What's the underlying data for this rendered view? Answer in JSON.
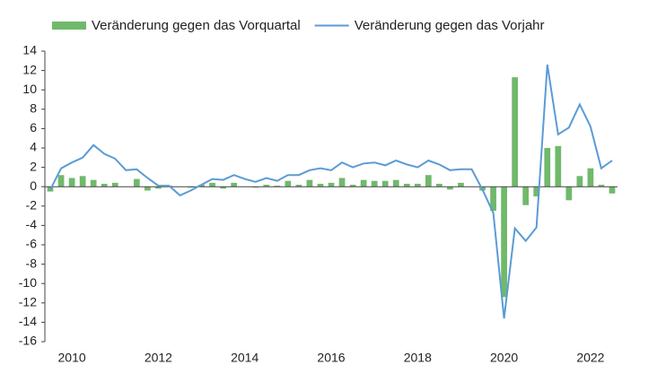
{
  "chart_data": {
    "type": "bar-line",
    "categories": [
      null,
      null,
      "2010",
      null,
      null,
      null,
      null,
      null,
      null,
      null,
      "2012",
      null,
      null,
      null,
      null,
      null,
      null,
      null,
      "2014",
      null,
      null,
      null,
      null,
      null,
      null,
      null,
      "2016",
      null,
      null,
      null,
      null,
      null,
      null,
      null,
      "2018",
      null,
      null,
      null,
      null,
      null,
      null,
      null,
      "2020",
      null,
      null,
      null,
      null,
      null,
      null,
      null,
      "2022",
      null,
      null
    ],
    "series": [
      {
        "name": "Veränderung gegen das Vorquartal",
        "color": "#70b96b",
        "kind": "bar",
        "values": [
          -0.5,
          1.2,
          0.9,
          1.1,
          0.7,
          0.3,
          0.4,
          0.0,
          0.8,
          -0.4,
          -0.2,
          0.1,
          0.0,
          -0.1,
          0.2,
          0.4,
          -0.2,
          0.4,
          0.0,
          -0.1,
          0.2,
          0.1,
          0.6,
          0.2,
          0.7,
          0.3,
          0.4,
          0.9,
          0.2,
          0.7,
          0.6,
          0.6,
          0.7,
          0.3,
          0.3,
          1.2,
          0.3,
          -0.3,
          0.4,
          0.0,
          -0.4,
          -2.5,
          -11.4,
          11.3,
          -1.9,
          -1.0,
          4.0,
          4.2,
          -1.4,
          1.1,
          1.9,
          0.2,
          -0.7
        ]
      },
      {
        "name": "Veränderung gegen das Vorjahr",
        "color": "#5b9bd5",
        "kind": "line",
        "values": [
          -0.3,
          1.9,
          2.5,
          3.0,
          4.3,
          3.4,
          2.9,
          1.7,
          1.8,
          0.9,
          0.1,
          0.1,
          -0.9,
          -0.4,
          0.2,
          0.8,
          0.7,
          1.2,
          0.8,
          0.5,
          0.9,
          0.6,
          1.2,
          1.2,
          1.7,
          1.9,
          1.7,
          2.5,
          2.0,
          2.4,
          2.5,
          2.2,
          2.7,
          2.3,
          2.0,
          2.7,
          2.3,
          1.7,
          1.8,
          1.8,
          -0.3,
          -2.7,
          -13.6,
          -4.3,
          -5.6,
          -4.2,
          12.6,
          5.4,
          6.1,
          8.5,
          6.2,
          1.9,
          2.7
        ]
      }
    ],
    "ylim": [
      -16,
      14
    ],
    "yticks": [
      -16,
      -14,
      -12,
      -10,
      -8,
      -6,
      -4,
      -2,
      0,
      2,
      4,
      6,
      8,
      10,
      12,
      14
    ],
    "grid": false
  }
}
